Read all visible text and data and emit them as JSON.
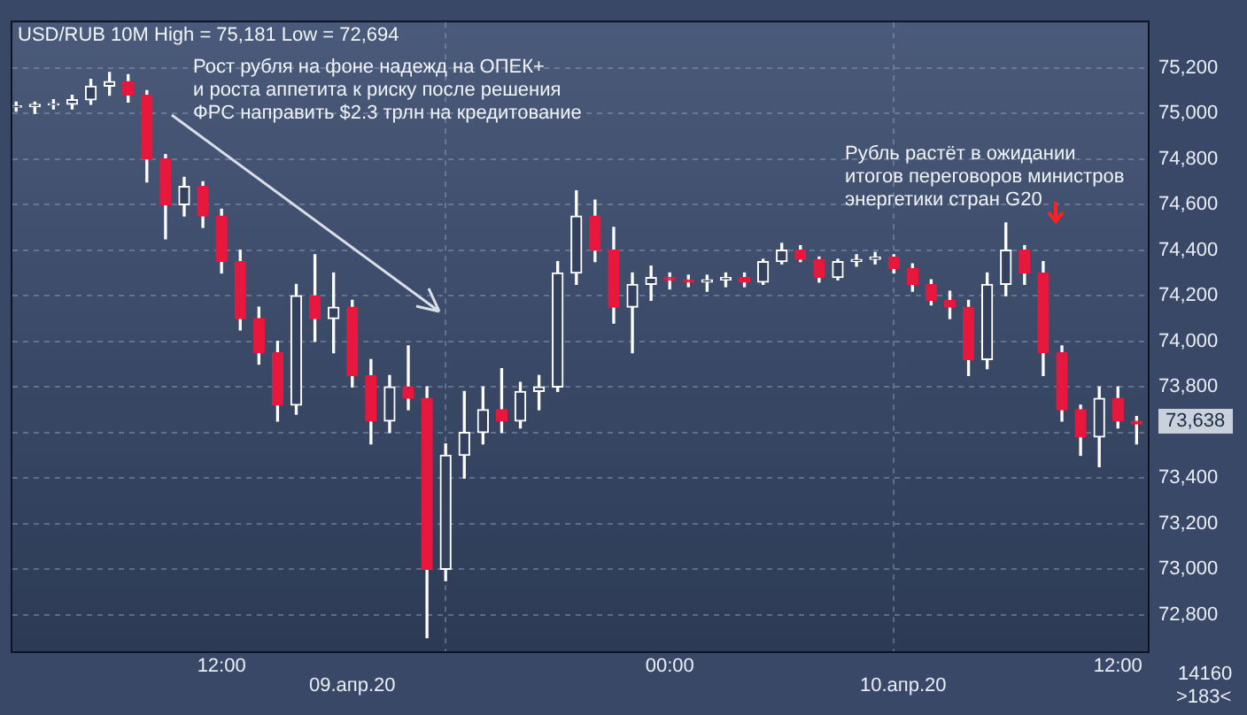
{
  "chart_data": {
    "type": "candlestick",
    "title": "USD/RUB 10M High = 75,181 Low = 72,694",
    "annotations": [
      "Рост рубля на фоне надежд на ОПЕК+\nи роста аппетита к риску после решения\nФРС направить $2.3 трлн на кредитование",
      "Рубль растёт в ожидании\nитогов переговоров министров\nэнергетики стран G20",
      "73,638",
      "14160",
      ">183<"
    ],
    "x": [
      "--04-09T06:30",
      "--04-09T07:00",
      "--04-09T07:30",
      "--04-09T08:00",
      "--04-09T08:30",
      "--04-09T09:00",
      "--04-09T09:30",
      "--04-09T10:00",
      "--04-09T10:30",
      "--04-09T11:00",
      "--04-09T11:30",
      "--04-09T12:00",
      "--04-09T12:30",
      "--04-09T13:00",
      "--04-09T13:30",
      "--04-09T14:00",
      "--04-09T14:30",
      "--04-09T15:00",
      "--04-09T15:30",
      "--04-09T16:00",
      "--04-09T16:30",
      "--04-09T17:00",
      "--04-09T17:30",
      "--04-09T18:00",
      "--04-09T18:30",
      "--04-09T19:00",
      "--04-09T19:30",
      "--04-09T20:00",
      "--04-09T20:30",
      "--04-09T21:00",
      "--04-09T21:30",
      "--04-09T22:00",
      "--04-09T22:30",
      "--04-09T23:00",
      "--04-09T23:30",
      "--04-10T00:00",
      "--04-10T00:30",
      "--04-10T01:00",
      "--04-10T01:30",
      "--04-10T02:00",
      "--04-10T02:30",
      "--04-10T03:00",
      "--04-10T03:30",
      "--04-10T04:00",
      "--04-10T04:30",
      "--04-10T05:00",
      "--04-10T05:30",
      "--04-10T06:00",
      "--04-10T06:30",
      "--04-10T07:00",
      "--04-10T07:30",
      "--04-10T08:00",
      "--04-10T08:30",
      "--04-10T09:00",
      "--04-10T09:30",
      "--04-10T10:00",
      "--04-10T10:30",
      "--04-10T11:00",
      "--04-10T11:30",
      "--04-10T12:00",
      "--04-10T12:30"
    ],
    "ohlc": [
      [
        75030,
        75050,
        75010,
        75030
      ],
      [
        75030,
        75050,
        75000,
        75040
      ],
      [
        75040,
        75060,
        75020,
        75040
      ],
      [
        75040,
        75080,
        75020,
        75060
      ],
      [
        75060,
        75150,
        75040,
        75120
      ],
      [
        75120,
        75180,
        75080,
        75140
      ],
      [
        75140,
        75170,
        75050,
        75080
      ],
      [
        75080,
        75100,
        74700,
        74800
      ],
      [
        74800,
        74820,
        74450,
        74600
      ],
      [
        74600,
        74720,
        74550,
        74680
      ],
      [
        74680,
        74700,
        74500,
        74550
      ],
      [
        74550,
        74580,
        74300,
        74350
      ],
      [
        74350,
        74400,
        74050,
        74100
      ],
      [
        74100,
        74150,
        73900,
        73950
      ],
      [
        73950,
        74000,
        73650,
        73720
      ],
      [
        73720,
        74250,
        73680,
        74200
      ],
      [
        74200,
        74380,
        74000,
        74100
      ],
      [
        74100,
        74300,
        73950,
        74150
      ],
      [
        74150,
        74180,
        73800,
        73850
      ],
      [
        73850,
        73920,
        73550,
        73650
      ],
      [
        73650,
        73850,
        73600,
        73800
      ],
      [
        73800,
        73980,
        73700,
        73750
      ],
      [
        73750,
        73800,
        72700,
        73000
      ],
      [
        73000,
        73550,
        72950,
        73500
      ],
      [
        73500,
        73780,
        73400,
        73600
      ],
      [
        73600,
        73800,
        73550,
        73700
      ],
      [
        73700,
        73880,
        73600,
        73650
      ],
      [
        73650,
        73820,
        73620,
        73780
      ],
      [
        73780,
        73850,
        73700,
        73800
      ],
      [
        73800,
        74350,
        73780,
        74300
      ],
      [
        74300,
        74660,
        74250,
        74550
      ],
      [
        74550,
        74620,
        74350,
        74400
      ],
      [
        74400,
        74500,
        74080,
        74150
      ],
      [
        74150,
        74300,
        73950,
        74250
      ],
      [
        74250,
        74330,
        74180,
        74280
      ],
      [
        74280,
        74300,
        74230,
        74270
      ],
      [
        74270,
        74290,
        74240,
        74260
      ],
      [
        74260,
        74290,
        74220,
        74270
      ],
      [
        74270,
        74300,
        74240,
        74280
      ],
      [
        74280,
        74300,
        74240,
        74260
      ],
      [
        74260,
        74360,
        74250,
        74350
      ],
      [
        74350,
        74430,
        74340,
        74400
      ],
      [
        74400,
        74420,
        74350,
        74360
      ],
      [
        74360,
        74370,
        74260,
        74280
      ],
      [
        74280,
        74360,
        74270,
        74350
      ],
      [
        74350,
        74380,
        74330,
        74360
      ],
      [
        74360,
        74390,
        74340,
        74370
      ],
      [
        74370,
        74380,
        74300,
        74320
      ],
      [
        74320,
        74340,
        74220,
        74250
      ],
      [
        74250,
        74270,
        74160,
        74180
      ],
      [
        74180,
        74220,
        74100,
        74150
      ],
      [
        74150,
        74180,
        73850,
        73920
      ],
      [
        73920,
        74300,
        73880,
        74250
      ],
      [
        74250,
        74520,
        74200,
        74400
      ],
      [
        74400,
        74420,
        74250,
        74300
      ],
      [
        74300,
        74350,
        73850,
        73950
      ],
      [
        73950,
        73980,
        73650,
        73700
      ],
      [
        73700,
        73720,
        73500,
        73580
      ],
      [
        73580,
        73800,
        73450,
        73750
      ],
      [
        73750,
        73800,
        73620,
        73650
      ],
      [
        73650,
        73670,
        73550,
        73638
      ]
    ],
    "xlim": [
      "--04-09T06:24",
      "--04-10T12:48"
    ],
    "xticks": [
      {
        "value": "--04-09T12:00",
        "label": "12:00"
      },
      {
        "value": "--04-10T00:00",
        "label": "00:00"
      },
      {
        "value": "--04-10T12:00",
        "label": "12:00"
      }
    ],
    "x2lim": [
      "--04-09T06:24",
      "--04-10T12:48"
    ],
    "x2ticks": [
      {
        "value": "--04-09T15:30",
        "label": "09.апр.20"
      },
      {
        "value": "--04-10T06:15",
        "label": "10.апр.20"
      }
    ],
    "ylim": [
      72640,
      75400
    ],
    "yticks": [
      {
        "value": 72800,
        "label": "72,800"
      },
      {
        "value": 73000,
        "label": "73,000"
      },
      {
        "value": 73200,
        "label": "73,200"
      },
      {
        "value": 73400,
        "label": "73,400"
      },
      {
        "value": 73600,
        "label": null
      },
      {
        "value": 73800,
        "label": "73,800"
      },
      {
        "value": 74000,
        "label": "74,000"
      },
      {
        "value": 74200,
        "label": "74,200"
      },
      {
        "value": 74400,
        "label": "74,400"
      },
      {
        "value": 74600,
        "label": "74,600"
      },
      {
        "value": 74800,
        "label": "74,800"
      },
      {
        "value": 75000,
        "label": "75,000"
      },
      {
        "value": 75200,
        "label": "75,200"
      }
    ],
    "grid": true,
    "legend": false
  }
}
